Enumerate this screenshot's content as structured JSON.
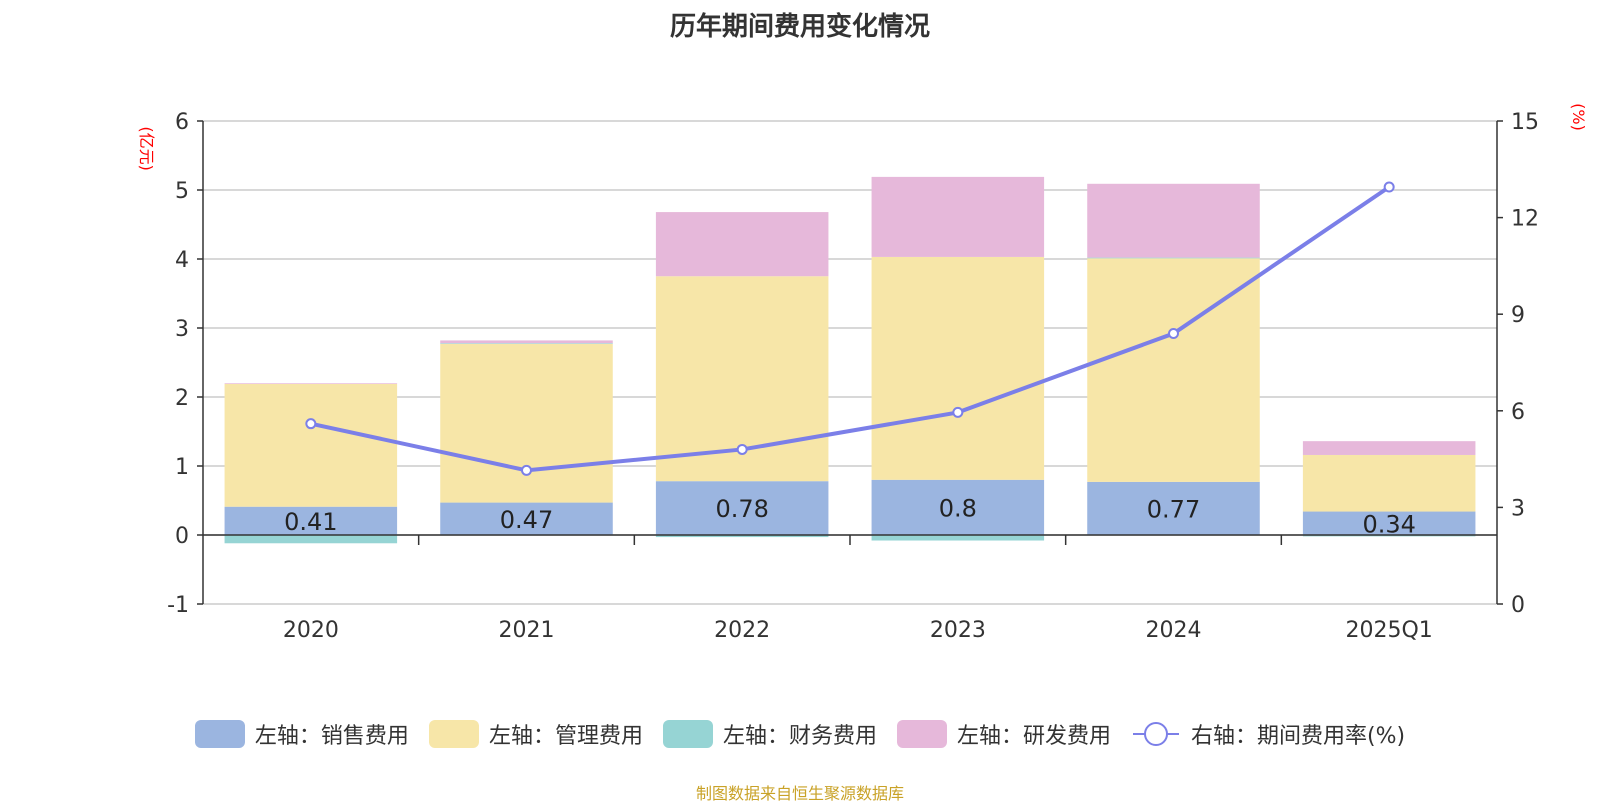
{
  "chart_data": {
    "type": "bar",
    "title": "历年期间费用变化情况",
    "categories": [
      "2020",
      "2021",
      "2022",
      "2023",
      "2024",
      "2025Q1"
    ],
    "left_axis": {
      "unit": "(亿元)",
      "ylim": [
        -1,
        6
      ],
      "ticks": [
        "-1",
        "0",
        "1",
        "2",
        "3",
        "4",
        "5",
        "6"
      ]
    },
    "right_axis": {
      "unit": "(%)",
      "ylim": [
        0,
        15
      ],
      "ticks": [
        "0",
        "3",
        "6",
        "9",
        "12",
        "15"
      ]
    },
    "series": [
      {
        "name": "左轴：销售费用",
        "axis": "left",
        "stack": true,
        "color": "#9bb5e0",
        "values": [
          0.41,
          0.47,
          0.78,
          0.8,
          0.77,
          0.34
        ],
        "labels": [
          "0.41",
          "0.47",
          "0.78",
          "0.8",
          "0.77",
          "0.34"
        ]
      },
      {
        "name": "左轴：管理费用",
        "axis": "left",
        "stack": true,
        "color": "#f7e6a8",
        "values": [
          1.78,
          2.3,
          2.97,
          3.23,
          3.24,
          0.82
        ]
      },
      {
        "name": "左轴：财务费用",
        "axis": "left",
        "stack": true,
        "color": "#96d4d4",
        "values": [
          -0.12,
          0.01,
          -0.03,
          -0.08,
          0.01,
          -0.02
        ]
      },
      {
        "name": "左轴：研发费用",
        "axis": "left",
        "stack": true,
        "color": "#e6b8da",
        "values": [
          0.01,
          0.04,
          0.93,
          1.16,
          1.07,
          0.2
        ]
      },
      {
        "name": "右轴：期间费用率(%)",
        "axis": "right",
        "type": "line",
        "color": "#7b7fe8",
        "values": [
          5.6,
          4.15,
          4.8,
          5.95,
          8.4,
          12.95
        ]
      }
    ],
    "grid": true,
    "legend_position": "bottom"
  },
  "footer": {
    "source": "制图数据来自恒生聚源数据库"
  }
}
